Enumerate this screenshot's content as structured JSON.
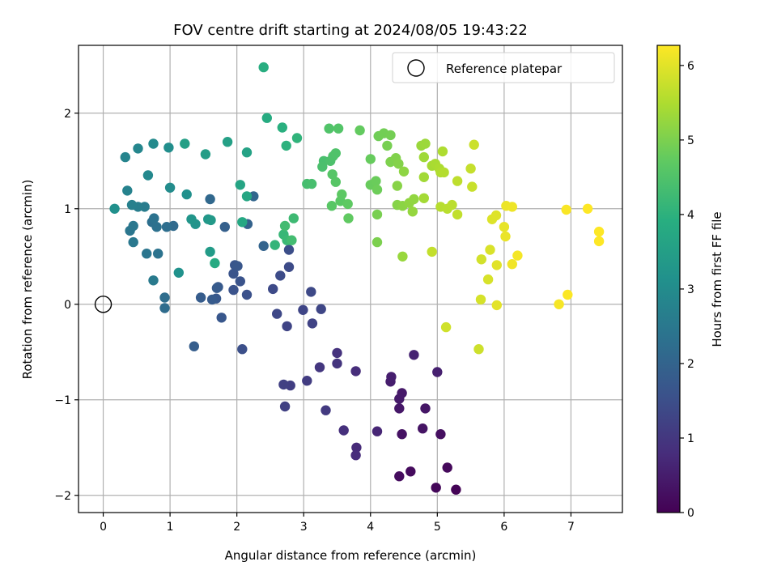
{
  "chart_data": {
    "type": "scatter",
    "title": "FOV centre drift starting at 2024/08/05 19:43:22",
    "xlabel": "Angular distance from reference (arcmin)",
    "ylabel": "Rotation from reference (arcmin)",
    "xlim": [
      -0.37,
      7.77
    ],
    "ylim": [
      -2.18,
      2.71
    ],
    "x_ticks": [
      0,
      1,
      2,
      3,
      4,
      5,
      6,
      7
    ],
    "x_tick_labels": [
      "0",
      "1",
      "2",
      "3",
      "4",
      "5",
      "6",
      "7"
    ],
    "y_ticks": [
      -2,
      -1,
      0,
      1,
      2
    ],
    "y_tick_labels": [
      "−2",
      "−1",
      "0",
      "1",
      "2"
    ],
    "grid": true,
    "legend": {
      "placement": "top-right",
      "entries": [
        "Reference platepar"
      ]
    },
    "reference_point": {
      "label": "Reference platepar",
      "x": 0,
      "y": 0,
      "marker": "open-circle"
    },
    "colorbar": {
      "label": "Hours from first FF file",
      "colormap": "viridis",
      "range": [
        0,
        6.27
      ],
      "ticks": [
        0,
        1,
        2,
        3,
        4,
        5,
        6
      ],
      "tick_labels": [
        "0",
        "1",
        "2",
        "3",
        "4",
        "5",
        "6"
      ]
    },
    "points": [
      [
        5.28,
        -1.94,
        0.05
      ],
      [
        4.98,
        -1.92,
        0.1
      ],
      [
        5.15,
        -1.71,
        0.14
      ],
      [
        4.6,
        -1.75,
        0.18
      ],
      [
        4.43,
        -1.8,
        0.2
      ],
      [
        5.05,
        -1.36,
        0.25
      ],
      [
        4.47,
        -1.36,
        0.3
      ],
      [
        4.78,
        -1.3,
        0.33
      ],
      [
        4.82,
        -1.09,
        0.37
      ],
      [
        4.43,
        -1.09,
        0.4
      ],
      [
        4.47,
        -0.93,
        0.42
      ],
      [
        4.43,
        -0.99,
        0.45
      ],
      [
        4.3,
        -0.81,
        0.5
      ],
      [
        4.31,
        -0.76,
        0.52
      ],
      [
        5.0,
        -0.71,
        0.55
      ],
      [
        4.65,
        -0.53,
        0.6
      ],
      [
        4.1,
        -1.33,
        0.66
      ],
      [
        3.79,
        -1.5,
        0.75
      ],
      [
        3.78,
        -1.58,
        0.78
      ],
      [
        3.78,
        -0.7,
        0.8
      ],
      [
        3.6,
        -1.32,
        0.85
      ],
      [
        3.5,
        -0.51,
        0.9
      ],
      [
        3.5,
        -0.62,
        0.95
      ],
      [
        3.24,
        -0.66,
        1.0
      ],
      [
        3.33,
        -1.11,
        1.05
      ],
      [
        3.05,
        -0.8,
        1.1
      ],
      [
        2.8,
        -0.85,
        1.15
      ],
      [
        2.7,
        -0.84,
        1.18
      ],
      [
        2.72,
        -1.07,
        1.2
      ],
      [
        3.13,
        -0.2,
        1.25
      ],
      [
        2.75,
        -0.23,
        1.28
      ],
      [
        2.99,
        -0.06,
        1.3
      ],
      [
        3.26,
        -0.05,
        1.32
      ],
      [
        2.6,
        -0.1,
        1.35
      ],
      [
        3.11,
        0.13,
        1.38
      ],
      [
        2.54,
        0.16,
        1.4
      ],
      [
        2.78,
        0.39,
        1.42
      ],
      [
        2.65,
        0.3,
        1.45
      ],
      [
        2.78,
        0.57,
        1.48
      ],
      [
        2.08,
        -0.47,
        1.52
      ],
      [
        2.15,
        0.1,
        1.55
      ],
      [
        1.95,
        0.15,
        1.58
      ],
      [
        2.05,
        0.24,
        1.6
      ],
      [
        1.95,
        0.32,
        1.62
      ],
      [
        1.97,
        0.41,
        1.65
      ],
      [
        2.01,
        0.4,
        1.68
      ],
      [
        1.77,
        -0.14,
        1.7
      ],
      [
        1.69,
        0.06,
        1.72
      ],
      [
        1.72,
        0.18,
        1.75
      ],
      [
        1.7,
        0.17,
        1.78
      ],
      [
        1.63,
        0.05,
        1.8
      ],
      [
        1.46,
        0.07,
        1.82
      ],
      [
        1.36,
        -0.44,
        1.85
      ],
      [
        1.82,
        0.81,
        1.9
      ],
      [
        2.16,
        0.84,
        1.95
      ],
      [
        2.4,
        0.61,
        2.0
      ],
      [
        2.25,
        1.13,
        2.05
      ],
      [
        1.6,
        1.1,
        2.1
      ],
      [
        1.05,
        0.82,
        2.15
      ],
      [
        0.92,
        -0.04,
        2.2
      ],
      [
        0.92,
        0.07,
        2.22
      ],
      [
        0.95,
        0.81,
        2.25
      ],
      [
        0.73,
        0.86,
        2.28
      ],
      [
        0.8,
        0.81,
        2.32
      ],
      [
        0.76,
        0.9,
        2.35
      ],
      [
        0.82,
        0.53,
        2.38
      ],
      [
        0.65,
        0.53,
        2.42
      ],
      [
        0.4,
        0.77,
        2.45
      ],
      [
        0.45,
        0.82,
        2.48
      ],
      [
        0.45,
        0.65,
        2.5
      ],
      [
        0.75,
        0.25,
        2.55
      ],
      [
        0.62,
        1.02,
        2.6
      ],
      [
        0.52,
        1.02,
        2.65
      ],
      [
        0.43,
        1.04,
        2.7
      ],
      [
        0.36,
        1.19,
        2.75
      ],
      [
        0.33,
        1.54,
        2.8
      ],
      [
        0.52,
        1.63,
        2.85
      ],
      [
        0.67,
        1.35,
        2.9
      ],
      [
        0.75,
        1.68,
        2.95
      ],
      [
        1.0,
        1.22,
        3.0
      ],
      [
        0.98,
        1.64,
        3.05
      ],
      [
        1.25,
        1.15,
        3.1
      ],
      [
        0.17,
        1.0,
        3.12
      ],
      [
        1.13,
        0.33,
        3.15
      ],
      [
        1.38,
        0.84,
        3.2
      ],
      [
        1.32,
        0.89,
        3.25
      ],
      [
        1.57,
        0.89,
        3.3
      ],
      [
        1.61,
        0.88,
        3.35
      ],
      [
        1.6,
        0.55,
        3.4
      ],
      [
        1.53,
        1.57,
        3.45
      ],
      [
        1.22,
        1.68,
        3.5
      ],
      [
        1.86,
        1.7,
        3.55
      ],
      [
        2.15,
        1.59,
        3.6
      ],
      [
        2.05,
        1.25,
        3.65
      ],
      [
        2.15,
        1.13,
        3.7
      ],
      [
        2.08,
        0.86,
        3.75
      ],
      [
        1.67,
        0.43,
        3.8
      ],
      [
        2.45,
        1.95,
        3.85
      ],
      [
        2.4,
        2.48,
        3.9
      ],
      [
        2.68,
        1.85,
        3.95
      ],
      [
        2.74,
        1.66,
        4.0
      ],
      [
        2.9,
        1.74,
        4.05
      ],
      [
        2.57,
        0.62,
        4.1
      ],
      [
        2.7,
        0.73,
        4.15
      ],
      [
        2.75,
        0.67,
        4.2
      ],
      [
        2.85,
        0.9,
        4.25
      ],
      [
        2.72,
        0.82,
        4.3
      ],
      [
        2.82,
        0.67,
        4.32
      ],
      [
        3.05,
        1.26,
        4.35
      ],
      [
        3.12,
        1.26,
        4.38
      ],
      [
        3.3,
        1.5,
        4.4
      ],
      [
        3.28,
        1.44,
        4.42
      ],
      [
        3.4,
        1.5,
        4.45
      ],
      [
        3.44,
        1.55,
        4.48
      ],
      [
        3.48,
        1.58,
        4.5
      ],
      [
        3.38,
        1.84,
        4.52
      ],
      [
        3.52,
        1.84,
        4.55
      ],
      [
        3.43,
        1.36,
        4.58
      ],
      [
        3.48,
        1.28,
        4.6
      ],
      [
        3.42,
        1.03,
        4.62
      ],
      [
        3.55,
        1.08,
        4.65
      ],
      [
        3.57,
        1.15,
        4.68
      ],
      [
        3.66,
        1.05,
        4.7
      ],
      [
        3.67,
        0.9,
        4.72
      ],
      [
        3.84,
        1.82,
        4.75
      ],
      [
        4.0,
        1.52,
        4.78
      ],
      [
        4.0,
        1.25,
        4.8
      ],
      [
        4.08,
        1.29,
        4.82
      ],
      [
        4.1,
        1.2,
        4.85
      ],
      [
        4.12,
        1.76,
        4.88
      ],
      [
        4.2,
        1.79,
        4.9
      ],
      [
        4.3,
        1.77,
        4.92
      ],
      [
        4.25,
        1.66,
        4.95
      ],
      [
        4.1,
        0.94,
        4.97
      ],
      [
        4.1,
        0.65,
        5.0
      ],
      [
        4.3,
        1.49,
        5.02
      ],
      [
        4.38,
        1.53,
        5.05
      ],
      [
        4.42,
        1.47,
        5.08
      ],
      [
        4.4,
        1.04,
        5.1
      ],
      [
        4.4,
        1.24,
        5.12
      ],
      [
        4.48,
        1.03,
        5.15
      ],
      [
        4.5,
        1.39,
        5.18
      ],
      [
        4.58,
        1.06,
        5.2
      ],
      [
        4.65,
        1.1,
        5.22
      ],
      [
        4.63,
        0.97,
        5.25
      ],
      [
        4.48,
        0.5,
        5.28
      ],
      [
        4.76,
        1.66,
        5.3
      ],
      [
        4.82,
        1.68,
        5.32
      ],
      [
        4.8,
        1.54,
        5.35
      ],
      [
        4.8,
        1.33,
        5.38
      ],
      [
        4.8,
        1.11,
        5.4
      ],
      [
        4.92,
        1.45,
        5.42
      ],
      [
        4.97,
        1.47,
        5.45
      ],
      [
        5.03,
        1.42,
        5.48
      ],
      [
        5.08,
        1.6,
        5.5
      ],
      [
        5.05,
        1.38,
        5.52
      ],
      [
        5.1,
        1.38,
        5.55
      ],
      [
        5.05,
        1.02,
        5.58
      ],
      [
        5.15,
        1.0,
        5.6
      ],
      [
        5.22,
        1.04,
        5.62
      ],
      [
        5.3,
        1.29,
        5.65
      ],
      [
        5.3,
        0.94,
        5.68
      ],
      [
        4.92,
        0.55,
        5.7
      ],
      [
        5.5,
        1.42,
        5.72
      ],
      [
        5.52,
        1.23,
        5.75
      ],
      [
        5.55,
        1.67,
        5.78
      ],
      [
        5.62,
        -0.47,
        5.8
      ],
      [
        5.13,
        -0.24,
        5.82
      ],
      [
        5.66,
        0.47,
        5.85
      ],
      [
        5.65,
        0.05,
        5.88
      ],
      [
        5.76,
        0.26,
        5.9
      ],
      [
        5.79,
        0.57,
        5.92
      ],
      [
        5.82,
        0.89,
        5.95
      ],
      [
        5.88,
        0.93,
        5.97
      ],
      [
        5.89,
        0.41,
        6.0
      ],
      [
        5.89,
        -0.01,
        6.02
      ],
      [
        6.0,
        0.81,
        6.05
      ],
      [
        6.02,
        0.71,
        6.08
      ],
      [
        6.03,
        1.03,
        6.1
      ],
      [
        6.12,
        1.02,
        6.12
      ],
      [
        6.12,
        0.42,
        6.15
      ],
      [
        6.2,
        0.51,
        6.18
      ],
      [
        6.82,
        0.0,
        6.2
      ],
      [
        6.93,
        0.99,
        6.23
      ],
      [
        6.95,
        0.1,
        6.25
      ],
      [
        7.25,
        1.0,
        6.27
      ],
      [
        7.42,
        0.76,
        6.27
      ],
      [
        7.42,
        0.66,
        6.27
      ]
    ]
  }
}
